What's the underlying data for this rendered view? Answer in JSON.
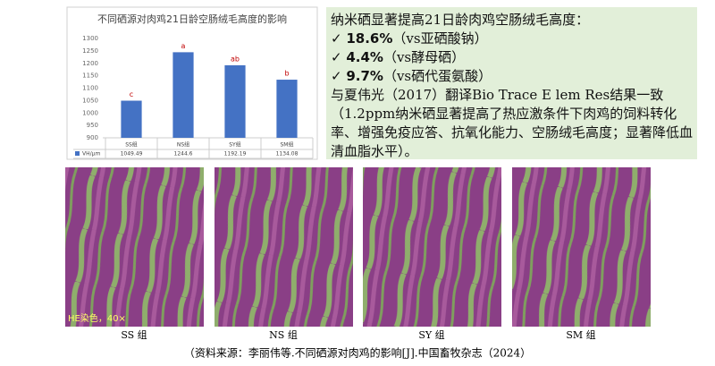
{
  "chart_data": {
    "type": "bar",
    "title": "不同硒源对肉鸡21日龄空肠绒毛高度的影响",
    "categories": [
      "SS组",
      "NS组",
      "SY组",
      "SM组"
    ],
    "series": [
      {
        "name": "VH/μm",
        "color": "#4472c4",
        "values": [
          1049.49,
          1244.6,
          1192.19,
          1134.08
        ]
      }
    ],
    "annotations": [
      "c",
      "a",
      "ab",
      "b"
    ],
    "ylim": [
      900,
      1300
    ],
    "yticks": [
      900,
      950,
      1000,
      1050,
      1100,
      1150,
      1200,
      1250,
      1300
    ],
    "grid": false
  },
  "text_box": {
    "heading": "纳米硒显著提高21日龄肉鸡空肠绒毛高度：",
    "bullets": [
      {
        "value": "18.6%",
        "note": "（vs亚硒酸钠）"
      },
      {
        "value": "4.4%",
        "note": "（vs酵母硒）"
      },
      {
        "value": "9.7%",
        "note": "（vs硒代蛋氨酸）"
      }
    ],
    "paragraph": "与夏伟光（2017）翻译Bio Trace E lem Res结果一致（1.2ppm纳米硒显著提高了热应激条件下肉鸡的饲料转化率、增强免疫应答、抗氧化能力、空肠绒毛高度；显著降低血清血脂水平）。"
  },
  "images": [
    {
      "label": "SS 组",
      "note": "HE染色，40×"
    },
    {
      "label": "NS 组"
    },
    {
      "label": "SY 组"
    },
    {
      "label": "SM 组"
    }
  ],
  "source": "（资料来源：李丽伟等.不同硒源对肉鸡的影响[J].中国畜牧杂志（2024）"
}
